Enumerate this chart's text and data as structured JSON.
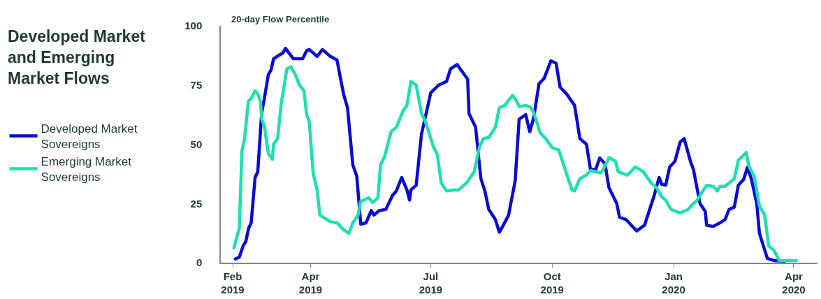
{
  "chart_data": {
    "type": "line",
    "title": "Developed Market and Emerging Market Flows",
    "ylabel": "20-day Flow Percentile",
    "xlim": [
      "2019-01-23",
      "2020-04-19"
    ],
    "ylim": [
      0,
      100
    ],
    "xticks": [
      {
        "value": "2019-02-01",
        "label": "Feb 2019"
      },
      {
        "value": "2019-04-01",
        "label": "Apr 2019"
      },
      {
        "value": "2019-07-01",
        "label": "Jul 2019"
      },
      {
        "value": "2019-10-01",
        "label": "Oct 2019"
      },
      {
        "value": "2020-01-01",
        "label": "Jan 2020"
      },
      {
        "value": "2020-04-01",
        "label": "Apr 2020"
      }
    ],
    "yticks": [
      0,
      25,
      50,
      75,
      100
    ],
    "legend": "left",
    "marker": "none",
    "line_style": "solid",
    "series": [
      {
        "name": "Developed Market Sovereigns",
        "color": "#0a0ad6",
        "x": [
          "2019-02-03",
          "2019-02-06",
          "2019-02-09",
          "2019-02-11",
          "2019-02-13",
          "2019-02-15",
          "2019-02-18",
          "2019-02-20",
          "2019-02-23",
          "2019-02-25",
          "2019-02-28",
          "2019-03-02",
          "2019-03-04",
          "2019-03-08",
          "2019-03-11",
          "2019-03-13",
          "2019-03-15",
          "2019-03-19",
          "2019-03-23",
          "2019-03-26",
          "2019-03-29",
          "2019-03-31",
          "2019-04-06",
          "2019-04-10",
          "2019-04-16",
          "2019-04-21",
          "2019-04-26",
          "2019-04-29",
          "2019-05-03",
          "2019-05-06",
          "2019-05-09",
          "2019-05-13",
          "2019-05-17",
          "2019-05-19",
          "2019-05-23",
          "2019-05-28",
          "2019-06-02",
          "2019-06-05",
          "2019-06-09",
          "2019-06-13",
          "2019-06-15",
          "2019-06-16",
          "2019-06-20",
          "2019-06-24",
          "2019-06-27",
          "2019-07-01",
          "2019-07-07",
          "2019-07-13",
          "2019-07-16",
          "2019-07-21",
          "2019-07-24",
          "2019-07-29",
          "2019-07-30",
          "2019-08-04",
          "2019-08-08",
          "2019-08-11",
          "2019-08-14",
          "2019-08-19",
          "2019-08-22",
          "2019-08-25",
          "2019-08-29",
          "2019-09-01",
          "2019-09-03",
          "2019-09-06",
          "2019-09-11",
          "2019-09-14",
          "2019-09-17",
          "2019-09-21",
          "2019-09-25",
          "2019-09-30",
          "2019-10-04",
          "2019-10-07",
          "2019-10-12",
          "2019-10-18",
          "2019-10-22",
          "2019-10-27",
          "2019-10-30",
          "2019-11-03",
          "2019-11-06",
          "2019-11-10",
          "2019-11-13",
          "2019-11-19",
          "2019-11-21",
          "2019-11-26",
          "2019-11-30",
          "2019-12-04",
          "2019-12-10",
          "2019-12-15",
          "2019-12-17",
          "2019-12-21",
          "2019-12-23",
          "2019-12-26",
          "2019-12-29",
          "2020-01-02",
          "2020-01-06",
          "2020-01-09",
          "2020-01-14",
          "2020-01-16",
          "2020-01-21",
          "2020-01-25",
          "2020-01-26",
          "2020-01-31",
          "2020-02-05",
          "2020-02-09",
          "2020-02-12",
          "2020-02-16",
          "2020-02-19",
          "2020-02-23",
          "2020-02-26",
          "2020-02-29",
          "2020-03-04",
          "2020-03-06",
          "2020-03-09",
          "2020-03-12",
          "2020-03-17",
          "2020-03-25"
        ],
        "values": [
          1.6,
          2.3,
          7.2,
          9,
          14.4,
          16.8,
          36,
          38.4,
          63.5,
          69.3,
          79.4,
          81.3,
          86.1,
          87.6,
          88.5,
          90.5,
          89,
          86.1,
          86.1,
          86.1,
          89.5,
          90,
          87.1,
          90,
          87.1,
          85.6,
          71.2,
          65.4,
          41.3,
          36.5,
          16.3,
          16.8,
          22,
          20.1,
          22,
          22.5,
          28.3,
          30.3,
          36,
          30.7,
          26.4,
          30.7,
          32.7,
          54.3,
          61.6,
          71.7,
          75,
          76.5,
          81.8,
          83.7,
          81.3,
          77.5,
          63,
          57.2,
          35.5,
          30.3,
          22.5,
          18.2,
          12.9,
          15.8,
          20.1,
          28.8,
          34.6,
          60.6,
          62.5,
          55.3,
          61.1,
          75.5,
          77.9,
          85.2,
          84.2,
          74.1,
          71.2,
          66.4,
          52.4,
          50,
          39.4,
          39.4,
          44.2,
          41.8,
          31.7,
          24.9,
          19.2,
          18.2,
          15.8,
          13.4,
          15.8,
          24.5,
          27.8,
          36,
          33.1,
          32.7,
          40.4,
          42.8,
          51,
          52.4,
          42.3,
          39.4,
          24.9,
          21.6,
          15.8,
          15.3,
          16.8,
          18.2,
          22.5,
          23.5,
          32.7,
          35.1,
          40.4,
          35.1,
          24.9,
          12.4,
          7.1,
          1.8,
          0.9,
          0.7
        ]
      },
      {
        "name": "Emerging Market Sovereigns",
        "color": "#1de0b0",
        "x": [
          "2019-02-02",
          "2019-02-04",
          "2019-02-06",
          "2019-02-08",
          "2019-02-10",
          "2019-02-12",
          "2019-02-13",
          "2019-02-15",
          "2019-02-18",
          "2019-02-20",
          "2019-02-22",
          "2019-02-23",
          "2019-02-25",
          "2019-02-28",
          "2019-03-03",
          "2019-03-04",
          "2019-03-07",
          "2019-03-10",
          "2019-03-11",
          "2019-03-14",
          "2019-03-17",
          "2019-03-20",
          "2019-03-24",
          "2019-03-27",
          "2019-03-29",
          "2019-03-31",
          "2019-04-03",
          "2019-04-06",
          "2019-04-08",
          "2019-04-16",
          "2019-04-21",
          "2019-04-26",
          "2019-04-30",
          "2019-05-03",
          "2019-05-07",
          "2019-05-09",
          "2019-05-15",
          "2019-05-18",
          "2019-05-22",
          "2019-05-24",
          "2019-05-27",
          "2019-06-01",
          "2019-06-05",
          "2019-06-10",
          "2019-06-13",
          "2019-06-16",
          "2019-06-20",
          "2019-06-24",
          "2019-06-27",
          "2019-07-03",
          "2019-07-06",
          "2019-07-09",
          "2019-07-13",
          "2019-07-18",
          "2019-07-22",
          "2019-07-28",
          "2019-08-03",
          "2019-08-07",
          "2019-08-10",
          "2019-08-14",
          "2019-08-19",
          "2019-08-22",
          "2019-08-26",
          "2019-09-01",
          "2019-09-04",
          "2019-09-06",
          "2019-09-11",
          "2019-09-14",
          "2019-09-17",
          "2019-09-22",
          "2019-09-26",
          "2019-10-01",
          "2019-10-06",
          "2019-10-10",
          "2019-10-16",
          "2019-10-18",
          "2019-10-22",
          "2019-10-27",
          "2019-10-30",
          "2019-11-07",
          "2019-11-10",
          "2019-11-13",
          "2019-11-18",
          "2019-11-20",
          "2019-11-27",
          "2019-12-03",
          "2019-12-09",
          "2019-12-15",
          "2019-12-19",
          "2019-12-23",
          "2019-12-26",
          "2019-12-30",
          "2020-01-06",
          "2020-01-12",
          "2020-01-15",
          "2020-01-19",
          "2020-01-22",
          "2020-01-26",
          "2020-01-31",
          "2020-02-03",
          "2020-02-05",
          "2020-02-09",
          "2020-02-16",
          "2020-02-19",
          "2020-02-25",
          "2020-02-27",
          "2020-03-02",
          "2020-03-06",
          "2020-03-10",
          "2020-03-13",
          "2020-03-17",
          "2020-03-21",
          "2020-04-03"
        ],
        "values": [
          6.2,
          10.5,
          14.4,
          47.1,
          52.4,
          63.5,
          68.3,
          69.3,
          72.6,
          71.2,
          68.3,
          60.6,
          57.7,
          46.2,
          43.7,
          50,
          52.4,
          68.3,
          71.2,
          81.8,
          82.7,
          79.9,
          74.6,
          72.6,
          62.5,
          59.6,
          37.5,
          30.7,
          20.1,
          17.3,
          16.8,
          13.9,
          12.4,
          16.8,
          20.1,
          25.9,
          27.4,
          25.4,
          27.4,
          41.3,
          44.7,
          55.3,
          57.2,
          64,
          66.4,
          76.5,
          75,
          63,
          59.6,
          49,
          45.7,
          33.6,
          30.3,
          30.7,
          30.7,
          33.6,
          38.4,
          49,
          52.4,
          52.9,
          57.2,
          65.4,
          66.4,
          70.7,
          68.3,
          65.9,
          66.4,
          65.9,
          63.5,
          54.8,
          52.4,
          48.6,
          47.6,
          40.8,
          30.7,
          30.3,
          35.5,
          37,
          38.9,
          37.9,
          40.8,
          44.4,
          42.8,
          38.4,
          37,
          40.4,
          38.4,
          33.6,
          31.7,
          27.8,
          26.4,
          22.5,
          21,
          22.5,
          24.5,
          26.4,
          29.3,
          32.7,
          32.2,
          30.3,
          32.2,
          32.2,
          35.5,
          43.2,
          46.6,
          40.8,
          36.5,
          24,
          20.1,
          7.1,
          5.2,
          0.9,
          0.9
        ]
      }
    ]
  }
}
